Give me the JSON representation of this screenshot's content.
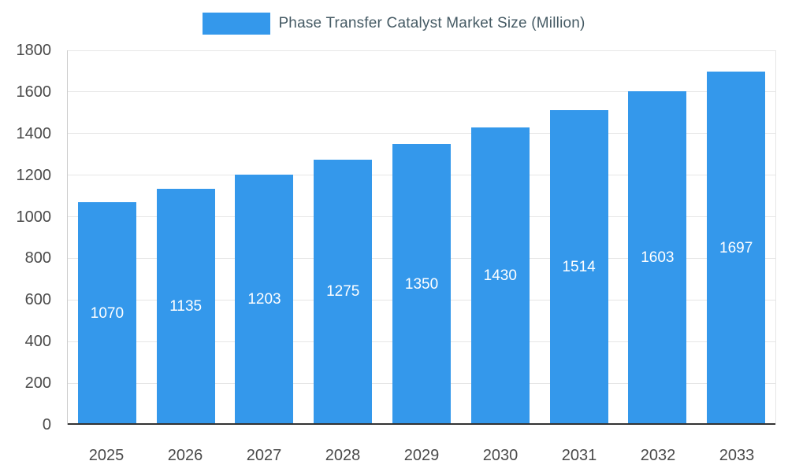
{
  "chart_data": {
    "type": "bar",
    "title": "Phase Transfer Catalyst Market Size (Million)",
    "categories": [
      "2025",
      "2026",
      "2027",
      "2028",
      "2029",
      "2030",
      "2031",
      "2032",
      "2033"
    ],
    "values": [
      1070,
      1135,
      1203,
      1275,
      1350,
      1430,
      1514,
      1603,
      1697
    ],
    "xlabel": "",
    "ylabel": "",
    "ylim": [
      0,
      1800
    ],
    "yticks": [
      0,
      200,
      400,
      600,
      800,
      1000,
      1200,
      1400,
      1600,
      1800
    ],
    "grid": true,
    "legend_position": "top",
    "bar_color": "#3498EB",
    "value_label_color": "#ffffff",
    "axis_label_color": "#4a4a4a",
    "legend_text_color": "#455a64",
    "gridline_color": "#e6e6e6",
    "baseline_color": "#333333"
  }
}
